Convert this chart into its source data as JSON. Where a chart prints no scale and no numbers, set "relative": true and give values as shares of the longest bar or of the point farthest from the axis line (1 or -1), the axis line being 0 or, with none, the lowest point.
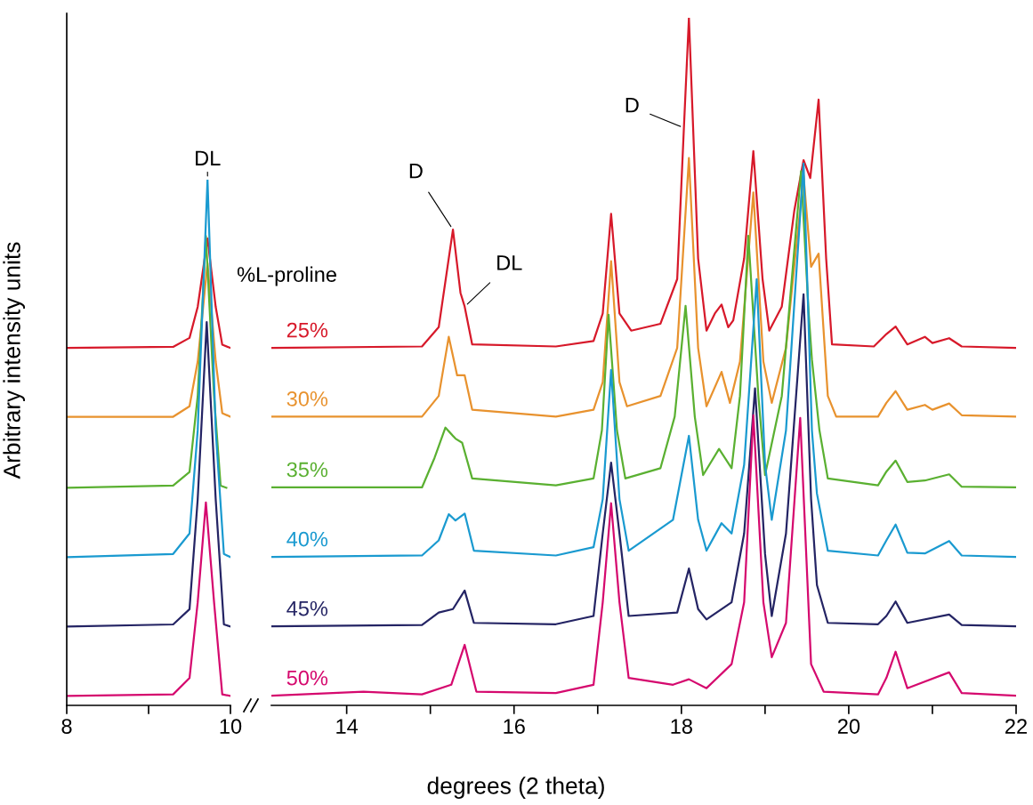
{
  "chart_data": [
    {
      "type": "line",
      "relative": true,
      "ylabel": "Arbitrary intensity units",
      "xlim": [
        8,
        10
      ],
      "xticks": [
        8,
        {
          "value": 9,
          "label": null
        },
        10
      ],
      "tick_labels": "x",
      "annotations": [
        {
          "text": "DL",
          "x": 9.72,
          "y": 1.0
        }
      ],
      "series": [
        {
          "color": "#d7192a",
          "x": [
            8,
            9.3,
            9.5,
            9.6,
            9.72,
            9.82,
            9.9,
            10
          ],
          "values": [
            0.68,
            0.682,
            0.699,
            0.758,
            0.888,
            0.758,
            0.686,
            0.68
          ]
        },
        {
          "color": "#e8922e",
          "x": [
            8,
            9.3,
            9.5,
            9.6,
            9.72,
            9.82,
            9.9,
            10
          ],
          "values": [
            0.549,
            0.549,
            0.569,
            0.654,
            0.841,
            0.654,
            0.556,
            0.549
          ]
        },
        {
          "color": "#5ab031",
          "x": [
            8,
            9.3,
            9.5,
            9.6,
            9.7,
            9.8,
            9.88,
            9.95
          ],
          "values": [
            0.414,
            0.418,
            0.444,
            0.588,
            0.893,
            0.588,
            0.418,
            0.414
          ]
        },
        {
          "color": "#1a9ad0",
          "x": [
            8,
            9.3,
            9.5,
            9.6,
            9.72,
            9.82,
            9.92,
            10
          ],
          "values": [
            0.282,
            0.288,
            0.327,
            0.523,
            1.0,
            0.523,
            0.288,
            0.282
          ]
        },
        {
          "color": "#242464",
          "x": [
            8,
            9.3,
            9.5,
            9.6,
            9.71,
            9.82,
            9.92,
            10
          ],
          "values": [
            0.15,
            0.154,
            0.183,
            0.392,
            0.729,
            0.392,
            0.154,
            0.15
          ]
        },
        {
          "color": "#d5096e",
          "x": [
            8,
            9.3,
            9.5,
            9.6,
            9.7,
            9.8,
            9.9,
            10
          ],
          "values": [
            0.018,
            0.021,
            0.052,
            0.196,
            0.386,
            0.196,
            0.021,
            0.018
          ]
        }
      ]
    },
    {
      "type": "line",
      "relative": true,
      "xlabel": "degrees (2 theta)",
      "legend_title": "%L-proline",
      "xlim": [
        13.1,
        22
      ],
      "xticks": [
        14,
        {
          "value": 15,
          "label": null
        },
        16,
        {
          "value": 17,
          "label": null
        },
        18,
        {
          "value": 19,
          "label": null
        },
        20,
        {
          "value": 21,
          "label": null
        },
        22
      ],
      "tick_labels": "x",
      "annotations": [
        {
          "text": "D",
          "x": 15.27,
          "y": 0.692
        },
        {
          "text": "DL",
          "x": 15.41,
          "y": 0.58
        },
        {
          "text": "D",
          "x": 18.03,
          "y": 0.84
        }
      ],
      "series": [
        {
          "name": "25%",
          "color": "#d7192a",
          "x": [
            13.1,
            14.9,
            15.1,
            15.27,
            15.36,
            15.41,
            15.5,
            16.5,
            16.95,
            17.06,
            17.16,
            17.26,
            17.4,
            17.75,
            17.95,
            18.03,
            18.09,
            18.2,
            18.3,
            18.4,
            18.48,
            18.56,
            18.62,
            18.75,
            18.86,
            18.97,
            19.05,
            19.2,
            19.35,
            19.46,
            19.54,
            19.64,
            19.73,
            19.8,
            20.3,
            20.45,
            20.56,
            20.7,
            20.91,
            21.0,
            21.2,
            21.35,
            22
          ],
          "values": [
            0.52,
            0.522,
            0.55,
            0.692,
            0.6,
            0.58,
            0.525,
            0.522,
            0.53,
            0.57,
            0.715,
            0.57,
            0.545,
            0.555,
            0.62,
            0.84,
            1.0,
            0.65,
            0.545,
            0.57,
            0.583,
            0.55,
            0.56,
            0.65,
            0.806,
            0.62,
            0.545,
            0.58,
            0.72,
            0.793,
            0.767,
            0.881,
            0.65,
            0.525,
            0.522,
            0.54,
            0.551,
            0.525,
            0.536,
            0.527,
            0.534,
            0.522,
            0.52
          ]
        },
        {
          "name": "30%",
          "color": "#e8922e",
          "x": [
            13.1,
            14.9,
            15.1,
            15.22,
            15.32,
            15.41,
            15.5,
            16.5,
            16.95,
            17.06,
            17.16,
            17.26,
            17.35,
            17.75,
            17.95,
            18.09,
            18.2,
            18.3,
            18.48,
            18.58,
            18.7,
            18.86,
            18.98,
            19.08,
            19.25,
            19.46,
            19.55,
            19.64,
            19.75,
            19.85,
            20.35,
            20.45,
            20.56,
            20.7,
            20.91,
            21.0,
            21.2,
            21.35,
            22
          ],
          "values": [
            0.42,
            0.42,
            0.45,
            0.536,
            0.48,
            0.48,
            0.43,
            0.42,
            0.43,
            0.47,
            0.646,
            0.47,
            0.435,
            0.45,
            0.52,
            0.796,
            0.52,
            0.435,
            0.485,
            0.44,
            0.5,
            0.746,
            0.5,
            0.44,
            0.52,
            0.771,
            0.638,
            0.657,
            0.45,
            0.42,
            0.42,
            0.44,
            0.457,
            0.43,
            0.437,
            0.43,
            0.439,
            0.422,
            0.42
          ]
        },
        {
          "name": "35%",
          "color": "#5ab031",
          "x": [
            13.1,
            14.9,
            15.05,
            15.18,
            15.3,
            15.38,
            15.5,
            16.5,
            16.95,
            17.05,
            17.13,
            17.23,
            17.33,
            17.75,
            17.92,
            18.05,
            18.16,
            18.26,
            18.45,
            18.6,
            18.7,
            18.8,
            18.92,
            19.0,
            19.2,
            19.43,
            19.52,
            19.56,
            19.65,
            19.75,
            20.35,
            20.45,
            20.56,
            20.7,
            20.91,
            21.2,
            21.35,
            22
          ],
          "values": [
            0.317,
            0.317,
            0.36,
            0.404,
            0.388,
            0.382,
            0.33,
            0.32,
            0.33,
            0.4,
            0.568,
            0.4,
            0.33,
            0.345,
            0.42,
            0.581,
            0.42,
            0.335,
            0.373,
            0.345,
            0.45,
            0.683,
            0.45,
            0.335,
            0.45,
            0.777,
            0.573,
            0.503,
            0.4,
            0.33,
            0.32,
            0.34,
            0.356,
            0.325,
            0.327,
            0.336,
            0.318,
            0.317
          ]
        },
        {
          "name": "40%",
          "color": "#1a9ad0",
          "x": [
            13.1,
            14.9,
            15.1,
            15.22,
            15.3,
            15.41,
            15.52,
            16.5,
            16.95,
            17.06,
            17.16,
            17.26,
            17.37,
            17.9,
            18.09,
            18.2,
            18.3,
            18.48,
            18.6,
            18.75,
            18.9,
            19.0,
            19.08,
            19.25,
            19.46,
            19.56,
            19.62,
            19.75,
            20.35,
            20.45,
            20.56,
            20.7,
            20.91,
            21.2,
            21.35,
            22
          ],
          "values": [
            0.216,
            0.218,
            0.24,
            0.278,
            0.269,
            0.279,
            0.225,
            0.218,
            0.23,
            0.3,
            0.488,
            0.3,
            0.225,
            0.27,
            0.392,
            0.27,
            0.225,
            0.265,
            0.25,
            0.35,
            0.62,
            0.35,
            0.27,
            0.4,
            0.788,
            0.4,
            0.308,
            0.225,
            0.218,
            0.24,
            0.263,
            0.222,
            0.221,
            0.239,
            0.218,
            0.216
          ]
        },
        {
          "name": "45%",
          "color": "#242464",
          "x": [
            13.1,
            14.9,
            15.1,
            15.27,
            15.41,
            15.52,
            16.5,
            16.95,
            17.06,
            17.16,
            17.26,
            17.37,
            17.95,
            18.09,
            18.2,
            18.3,
            18.6,
            18.75,
            18.88,
            19.0,
            19.08,
            19.25,
            19.46,
            19.55,
            19.62,
            19.75,
            20.35,
            20.45,
            20.56,
            20.7,
            21.2,
            21.35,
            22
          ],
          "values": [
            0.115,
            0.117,
            0.135,
            0.14,
            0.167,
            0.12,
            0.118,
            0.13,
            0.25,
            0.353,
            0.25,
            0.13,
            0.135,
            0.199,
            0.14,
            0.125,
            0.15,
            0.25,
            0.461,
            0.22,
            0.13,
            0.25,
            0.598,
            0.3,
            0.175,
            0.12,
            0.118,
            0.13,
            0.151,
            0.12,
            0.132,
            0.117,
            0.115
          ]
        },
        {
          "name": "50%",
          "color": "#d5096e",
          "x": [
            13.1,
            14.2,
            14.9,
            15.25,
            15.41,
            15.55,
            16.5,
            16.95,
            17.06,
            17.16,
            17.26,
            17.37,
            17.9,
            18.09,
            18.3,
            18.6,
            18.75,
            18.86,
            18.98,
            19.08,
            19.25,
            19.42,
            19.55,
            19.7,
            20.35,
            20.45,
            20.56,
            20.7,
            21.2,
            21.35,
            22
          ],
          "values": [
            0.014,
            0.02,
            0.016,
            0.03,
            0.088,
            0.02,
            0.018,
            0.03,
            0.15,
            0.294,
            0.15,
            0.04,
            0.03,
            0.038,
            0.025,
            0.06,
            0.15,
            0.422,
            0.15,
            0.07,
            0.12,
            0.418,
            0.06,
            0.02,
            0.016,
            0.04,
            0.078,
            0.025,
            0.048,
            0.018,
            0.014
          ]
        }
      ]
    }
  ]
}
